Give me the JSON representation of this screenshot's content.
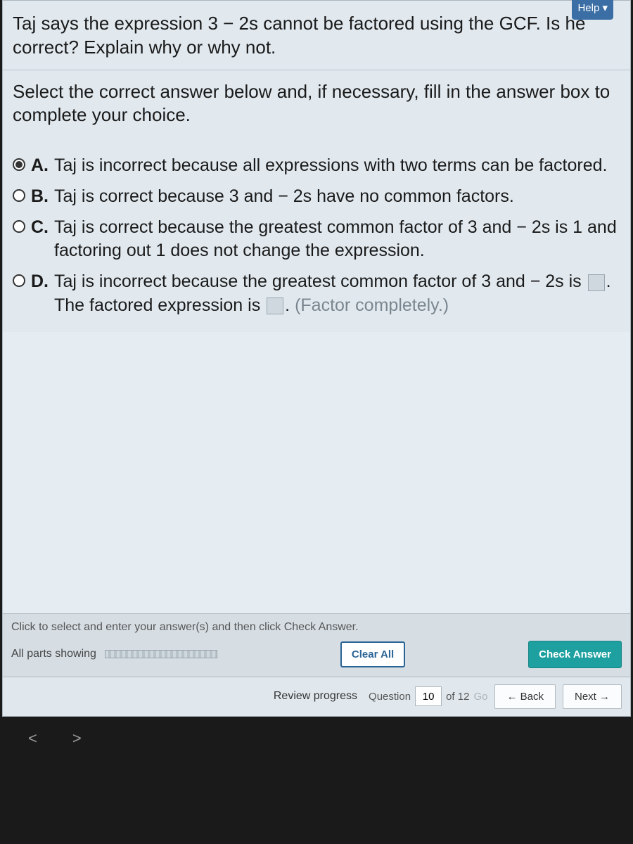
{
  "helpButtonPartial": "Help ▾",
  "question": {
    "prompt": "Taj says the expression 3 − 2s cannot be factored using the GCF. Is he correct? Explain why or why not.",
    "instruction": "Select the correct answer below and, if necessary, fill in the answer box to complete your choice."
  },
  "options": {
    "A": {
      "label": "A.",
      "text": "Taj is incorrect because all expressions with two terms can be factored.",
      "selected": true
    },
    "B": {
      "label": "B.",
      "text": "Taj is correct because 3 and  − 2s have no common factors.",
      "selected": false
    },
    "C": {
      "label": "C.",
      "text": "Taj is correct because the greatest common factor of 3 and  − 2s is 1 and factoring out 1 does not change the expression.",
      "selected": false
    },
    "D": {
      "label": "D.",
      "pre": "Taj is incorrect because the greatest common factor of 3 and  − 2s is ",
      "mid": ". The factored expression is ",
      "post": ". ",
      "hint": "(Factor completely.)",
      "selected": false
    }
  },
  "footer": {
    "clickHint": "Click to select and enter your answer(s) and then click Check Answer.",
    "partsShowing": "All parts showing",
    "clearAll": "Clear All",
    "checkAnswer": "Check Answer"
  },
  "nav": {
    "review": "Review progress",
    "questionWord": "Question",
    "current": "10",
    "ofTotal": "of 12",
    "go": "Go",
    "back": "← Back",
    "next": "Next →"
  },
  "browserNav": {
    "back": "<",
    "fwd": ">"
  },
  "colors": {
    "panelBg": "#e1e9ef",
    "accentTeal": "#1ea0a0",
    "accentBlue": "#2a6496"
  }
}
